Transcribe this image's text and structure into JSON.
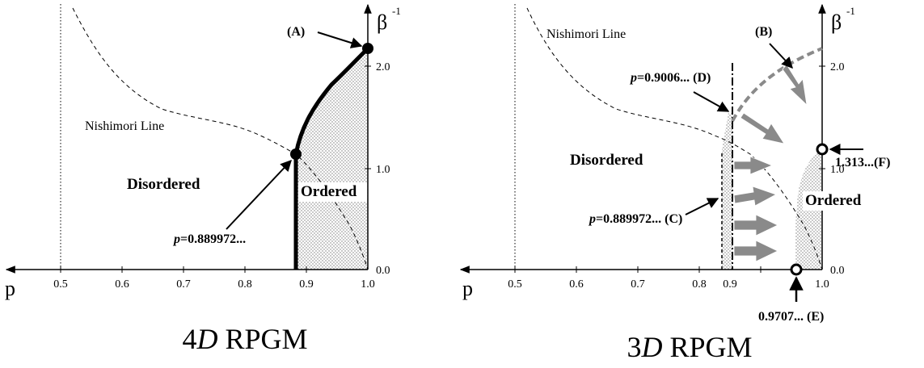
{
  "diagrams": [
    {
      "id": "4d",
      "title_num": "4",
      "title_D": "D",
      "title_rest": " RPGM",
      "x_axis_label": "p",
      "y_axis_label": "β",
      "y_axis_sup": "-1",
      "x_ticks": [
        "0.5",
        "0.6",
        "0.7",
        "0.8",
        "0.9",
        "1.0"
      ],
      "y_ticks": [
        "0.0",
        "1.0",
        "2.0"
      ],
      "nishimori_label": "Nishimori Line",
      "disordered_label": "Disordered",
      "ordered_label": "Ordered",
      "point_A_label": "(A)",
      "p_c_prefix": "p",
      "p_c_value": "=0.889972..."
    },
    {
      "id": "3d",
      "title_num": "3",
      "title_D": "D",
      "title_rest": " RPGM",
      "x_axis_label": "p",
      "y_axis_label": "β",
      "y_axis_sup": "-1",
      "x_ticks": [
        "0.5",
        "0.6",
        "0.7",
        "0.8",
        "0.9",
        "1.0"
      ],
      "y_ticks": [
        "0.0",
        "1.0",
        "2.0"
      ],
      "nishimori_label": "Nishimori Line",
      "disordered_label": "Disordered",
      "ordered_label": "Ordered",
      "point_B_label": "(B)",
      "pD_prefix": "p",
      "pD_value": "=0.9006... (D)",
      "pC_prefix": "p",
      "pC_value": "=0.889972... (C)",
      "point_E_label": "0.9707... (E)",
      "point_F_label": "1.313...(F)"
    }
  ]
}
